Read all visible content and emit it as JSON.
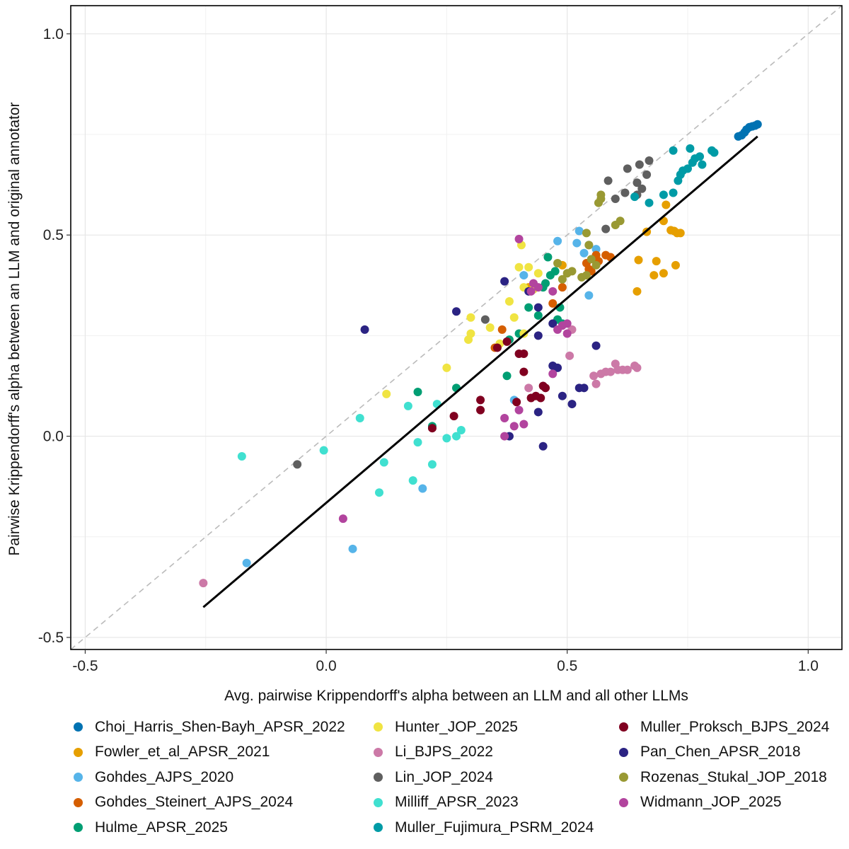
{
  "chart_data": {
    "type": "scatter",
    "xlabel": "Avg. pairwise Krippendorff's alpha between an LLM and all other LLMs",
    "ylabel": "Pairwise Krippendorff's alpha between an LLM and original annotator",
    "xlim": [
      -0.53,
      1.07
    ],
    "ylim": [
      -0.53,
      1.07
    ],
    "x_ticks": [
      -0.5,
      0.0,
      0.5,
      1.0
    ],
    "x_tick_labels": [
      "-0.5",
      "0.0",
      "0.5",
      "1.0"
    ],
    "y_ticks": [
      -0.5,
      0.0,
      0.5,
      1.0
    ],
    "y_tick_labels": [
      "-0.5",
      "0.0",
      "0.5",
      "1.0"
    ],
    "grid": true,
    "reference_line": {
      "type": "identity",
      "style": "dashed",
      "color": "#bbbbbb"
    },
    "fit_line": {
      "x": [
        -0.255,
        0.895
      ],
      "y": [
        -0.425,
        0.745
      ],
      "color": "#000000"
    },
    "legend_position": "bottom",
    "series": [
      {
        "name": "Choi_Harris_Shen-Bayh_APSR_2022",
        "color": "#0072B2",
        "points": [
          [
            0.855,
            0.745
          ],
          [
            0.862,
            0.748
          ],
          [
            0.868,
            0.755
          ],
          [
            0.872,
            0.762
          ],
          [
            0.878,
            0.768
          ],
          [
            0.884,
            0.77
          ],
          [
            0.89,
            0.772
          ],
          [
            0.895,
            0.775
          ]
        ]
      },
      {
        "name": "Fowler_et_al_APSR_2021",
        "color": "#E69F00",
        "points": [
          [
            0.645,
            0.36
          ],
          [
            0.648,
            0.438
          ],
          [
            0.665,
            0.508
          ],
          [
            0.68,
            0.4
          ],
          [
            0.685,
            0.435
          ],
          [
            0.7,
            0.405
          ],
          [
            0.705,
            0.575
          ],
          [
            0.715,
            0.512
          ],
          [
            0.722,
            0.51
          ],
          [
            0.725,
            0.425
          ],
          [
            0.728,
            0.505
          ],
          [
            0.735,
            0.505
          ],
          [
            0.7,
            0.535
          ],
          [
            0.49,
            0.425
          ],
          [
            0.42,
            0.37
          ]
        ]
      },
      {
        "name": "Gohdes_AJPS_2020",
        "color": "#56B4E9",
        "points": [
          [
            -0.165,
            -0.315
          ],
          [
            0.055,
            -0.28
          ],
          [
            0.2,
            -0.13
          ],
          [
            0.39,
            0.09
          ],
          [
            0.48,
            0.485
          ],
          [
            0.525,
            0.51
          ],
          [
            0.52,
            0.48
          ],
          [
            0.545,
            0.475
          ],
          [
            0.545,
            0.35
          ],
          [
            0.56,
            0.465
          ],
          [
            0.535,
            0.455
          ],
          [
            0.41,
            0.4
          ]
        ]
      },
      {
        "name": "Gohdes_Steinert_AJPS_2024",
        "color": "#D55E00",
        "points": [
          [
            0.35,
            0.22
          ],
          [
            0.365,
            0.265
          ],
          [
            0.47,
            0.33
          ],
          [
            0.49,
            0.37
          ],
          [
            0.54,
            0.43
          ],
          [
            0.545,
            0.415
          ],
          [
            0.555,
            0.44
          ],
          [
            0.56,
            0.45
          ],
          [
            0.565,
            0.435
          ],
          [
            0.58,
            0.45
          ],
          [
            0.59,
            0.445
          ],
          [
            0.55,
            0.41
          ]
        ]
      },
      {
        "name": "Hulme_APSR_2025",
        "color": "#009E73",
        "points": [
          [
            0.19,
            0.11
          ],
          [
            0.22,
            0.025
          ],
          [
            0.27,
            0.12
          ],
          [
            0.375,
            0.15
          ],
          [
            0.38,
            0.24
          ],
          [
            0.4,
            0.255
          ],
          [
            0.42,
            0.32
          ],
          [
            0.44,
            0.3
          ],
          [
            0.45,
            0.37
          ],
          [
            0.455,
            0.38
          ],
          [
            0.465,
            0.4
          ],
          [
            0.46,
            0.445
          ],
          [
            0.48,
            0.29
          ],
          [
            0.485,
            0.32
          ],
          [
            0.49,
            0.28
          ],
          [
            0.475,
            0.41
          ]
        ]
      },
      {
        "name": "Hunter_JOP_2025",
        "color": "#F0E442",
        "points": [
          [
            0.125,
            0.105
          ],
          [
            0.25,
            0.17
          ],
          [
            0.295,
            0.24
          ],
          [
            0.3,
            0.255
          ],
          [
            0.3,
            0.295
          ],
          [
            0.34,
            0.27
          ],
          [
            0.36,
            0.23
          ],
          [
            0.38,
            0.335
          ],
          [
            0.39,
            0.295
          ],
          [
            0.4,
            0.42
          ],
          [
            0.405,
            0.475
          ],
          [
            0.41,
            0.37
          ],
          [
            0.42,
            0.42
          ],
          [
            0.43,
            0.365
          ],
          [
            0.44,
            0.405
          ],
          [
            0.41,
            0.255
          ]
        ]
      },
      {
        "name": "Li_BJPS_2022",
        "color": "#CC79A7",
        "points": [
          [
            -0.255,
            -0.365
          ],
          [
            0.42,
            0.12
          ],
          [
            0.555,
            0.15
          ],
          [
            0.56,
            0.13
          ],
          [
            0.57,
            0.155
          ],
          [
            0.58,
            0.16
          ],
          [
            0.59,
            0.16
          ],
          [
            0.6,
            0.18
          ],
          [
            0.605,
            0.165
          ],
          [
            0.615,
            0.165
          ],
          [
            0.625,
            0.165
          ],
          [
            0.64,
            0.175
          ],
          [
            0.645,
            0.17
          ],
          [
            0.505,
            0.2
          ],
          [
            0.51,
            0.265
          ]
        ]
      },
      {
        "name": "Lin_JOP_2024",
        "color": "#5F5F5F",
        "points": [
          [
            -0.06,
            -0.07
          ],
          [
            0.33,
            0.29
          ],
          [
            0.58,
            0.515
          ],
          [
            0.6,
            0.59
          ],
          [
            0.585,
            0.635
          ],
          [
            0.625,
            0.665
          ],
          [
            0.62,
            0.605
          ],
          [
            0.645,
            0.63
          ],
          [
            0.65,
            0.675
          ],
          [
            0.655,
            0.615
          ],
          [
            0.67,
            0.685
          ],
          [
            0.665,
            0.65
          ],
          [
            0.645,
            0.6
          ]
        ]
      },
      {
        "name": "Milliff_APSR_2023",
        "color": "#40E0D0",
        "points": [
          [
            -0.175,
            -0.05
          ],
          [
            -0.005,
            -0.035
          ],
          [
            0.07,
            0.045
          ],
          [
            0.11,
            -0.14
          ],
          [
            0.12,
            -0.065
          ],
          [
            0.17,
            0.075
          ],
          [
            0.18,
            -0.11
          ],
          [
            0.19,
            -0.015
          ],
          [
            0.22,
            -0.07
          ],
          [
            0.23,
            0.08
          ],
          [
            0.25,
            -0.005
          ],
          [
            0.27,
            0.0
          ],
          [
            0.28,
            0.015
          ]
        ]
      },
      {
        "name": "Muller_Fujimura_PSRM_2024",
        "color": "#009BA6",
        "points": [
          [
            0.64,
            0.595
          ],
          [
            0.67,
            0.58
          ],
          [
            0.7,
            0.6
          ],
          [
            0.72,
            0.605
          ],
          [
            0.73,
            0.635
          ],
          [
            0.74,
            0.66
          ],
          [
            0.75,
            0.665
          ],
          [
            0.76,
            0.68
          ],
          [
            0.765,
            0.69
          ],
          [
            0.775,
            0.695
          ],
          [
            0.78,
            0.675
          ],
          [
            0.72,
            0.71
          ],
          [
            0.755,
            0.715
          ],
          [
            0.8,
            0.71
          ],
          [
            0.805,
            0.705
          ],
          [
            0.735,
            0.65
          ]
        ]
      },
      {
        "name": "Muller_Proksch_BJPS_2024",
        "color": "#800020",
        "points": [
          [
            0.22,
            0.02
          ],
          [
            0.265,
            0.05
          ],
          [
            0.32,
            0.065
          ],
          [
            0.32,
            0.09
          ],
          [
            0.355,
            0.22
          ],
          [
            0.395,
            0.085
          ],
          [
            0.4,
            0.205
          ],
          [
            0.41,
            0.205
          ],
          [
            0.41,
            0.16
          ],
          [
            0.425,
            0.095
          ],
          [
            0.435,
            0.1
          ],
          [
            0.445,
            0.095
          ],
          [
            0.45,
            0.125
          ],
          [
            0.455,
            0.12
          ],
          [
            0.375,
            0.235
          ]
        ]
      },
      {
        "name": "Pan_Chen_APSR_2018",
        "color": "#2B2383",
        "points": [
          [
            0.08,
            0.265
          ],
          [
            0.27,
            0.31
          ],
          [
            0.37,
            0.385
          ],
          [
            0.38,
            0.0
          ],
          [
            0.42,
            0.36
          ],
          [
            0.44,
            0.06
          ],
          [
            0.45,
            -0.025
          ],
          [
            0.44,
            0.32
          ],
          [
            0.47,
            0.175
          ],
          [
            0.47,
            0.28
          ],
          [
            0.48,
            0.17
          ],
          [
            0.49,
            0.1
          ],
          [
            0.51,
            0.08
          ],
          [
            0.525,
            0.12
          ],
          [
            0.535,
            0.12
          ],
          [
            0.56,
            0.225
          ],
          [
            0.44,
            0.25
          ]
        ]
      },
      {
        "name": "Rozenas_Stukal_JOP_2018",
        "color": "#999933",
        "points": [
          [
            0.48,
            0.43
          ],
          [
            0.5,
            0.405
          ],
          [
            0.51,
            0.41
          ],
          [
            0.53,
            0.395
          ],
          [
            0.54,
            0.505
          ],
          [
            0.545,
            0.475
          ],
          [
            0.55,
            0.44
          ],
          [
            0.56,
            0.425
          ],
          [
            0.565,
            0.58
          ],
          [
            0.57,
            0.59
          ],
          [
            0.57,
            0.6
          ],
          [
            0.6,
            0.525
          ],
          [
            0.61,
            0.535
          ],
          [
            0.49,
            0.39
          ],
          [
            0.54,
            0.4
          ]
        ]
      },
      {
        "name": "Widmann_JOP_2025",
        "color": "#B2449E",
        "points": [
          [
            0.035,
            -0.205
          ],
          [
            0.37,
            0.045
          ],
          [
            0.37,
            0.0
          ],
          [
            0.39,
            0.025
          ],
          [
            0.4,
            0.065
          ],
          [
            0.41,
            0.03
          ],
          [
            0.4,
            0.49
          ],
          [
            0.425,
            0.36
          ],
          [
            0.43,
            0.38
          ],
          [
            0.44,
            0.37
          ],
          [
            0.47,
            0.36
          ],
          [
            0.48,
            0.265
          ],
          [
            0.49,
            0.275
          ],
          [
            0.5,
            0.255
          ],
          [
            0.5,
            0.28
          ],
          [
            0.47,
            0.155
          ]
        ]
      }
    ]
  }
}
